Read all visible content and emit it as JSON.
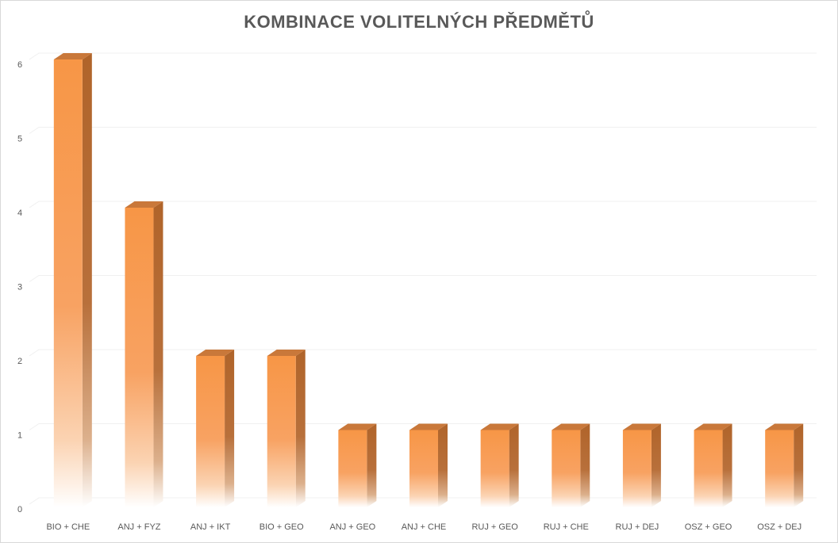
{
  "chart_data": {
    "type": "bar",
    "title": "KOMBINACE VOLITELNÝCH PŘEDMĚTŮ",
    "xlabel": "",
    "ylabel": "",
    "categories": [
      "BIO + CHE",
      "ANJ + FYZ",
      "ANJ + IKT",
      "BIO + GEO",
      "ANJ + GEO",
      "ANJ + CHE",
      "RUJ + GEO",
      "RUJ + CHE",
      "RUJ + DEJ",
      "OSZ + GEO",
      "OSZ + DEJ"
    ],
    "values": [
      6,
      4,
      2,
      2,
      1,
      1,
      1,
      1,
      1,
      1,
      1
    ],
    "ylim": [
      0,
      6
    ],
    "yticks": [
      0,
      1,
      2,
      3,
      4,
      5,
      6
    ],
    "grid": true,
    "legend": "none",
    "colors": {
      "bar_front": "#f79646",
      "bar_side": "#b0642a",
      "bar_top": "#c9783a",
      "grid": "#f0f0f0",
      "text": "#595959"
    }
  }
}
